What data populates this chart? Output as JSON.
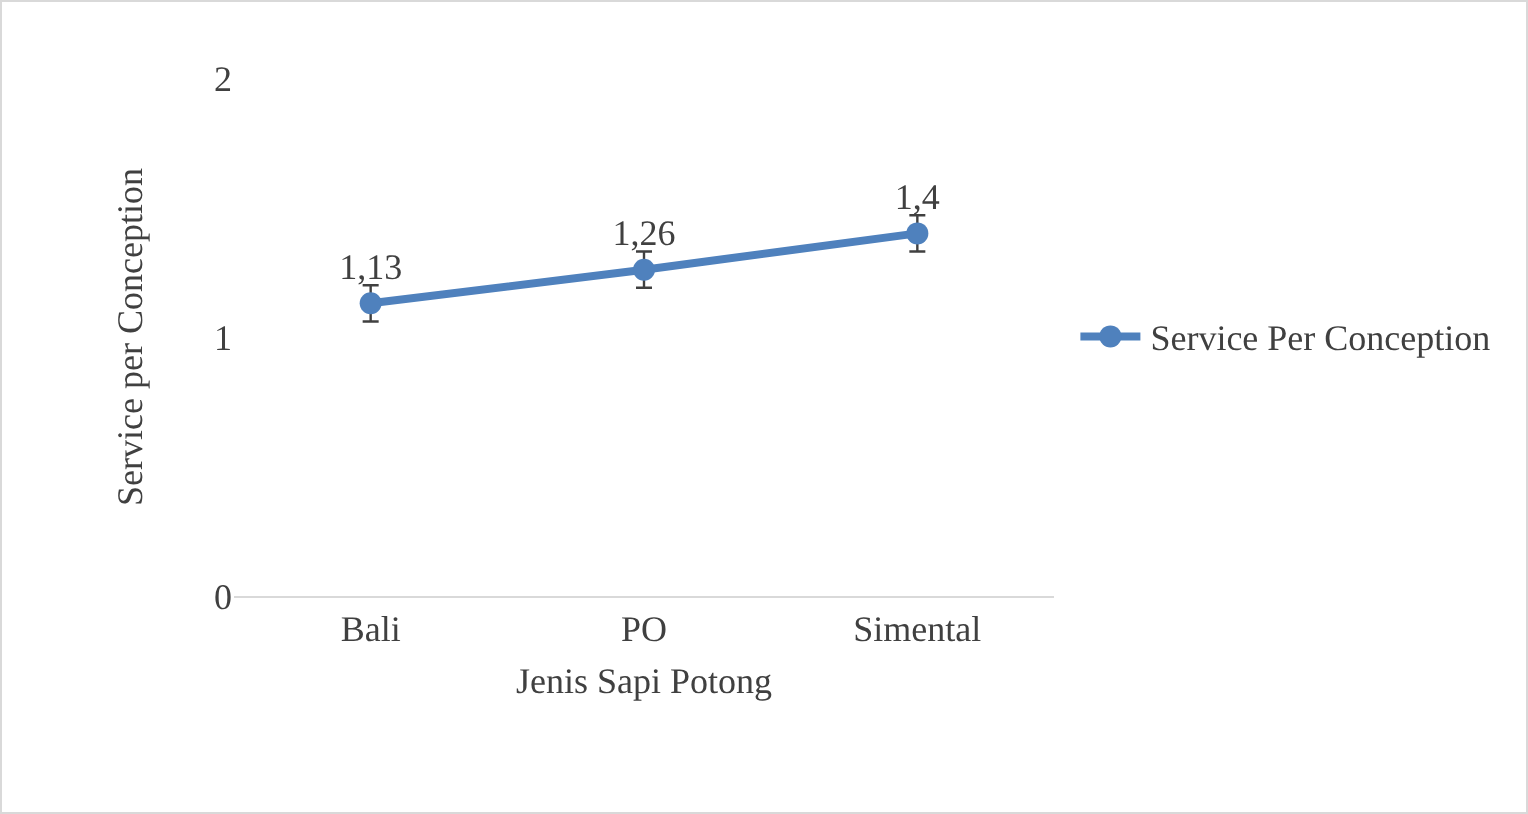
{
  "chart_data": {
    "type": "line",
    "xlabel": "Jenis Sapi Potong",
    "ylabel": "Service per Conception",
    "categories": [
      "Bali",
      "PO",
      "Simental"
    ],
    "series": [
      {
        "name": "Service Per Conception",
        "color": "#4f81bd",
        "values": [
          1.13,
          1.26,
          1.4
        ],
        "value_labels": [
          "1,13",
          "1,26",
          "1,4"
        ],
        "errors": [
          0.07,
          0.07,
          0.07
        ]
      }
    ],
    "ylim": [
      0,
      2
    ],
    "yticks": [
      0,
      1,
      2
    ],
    "grid": false,
    "legend": "right",
    "marker": "circle",
    "line_style": "solid"
  }
}
